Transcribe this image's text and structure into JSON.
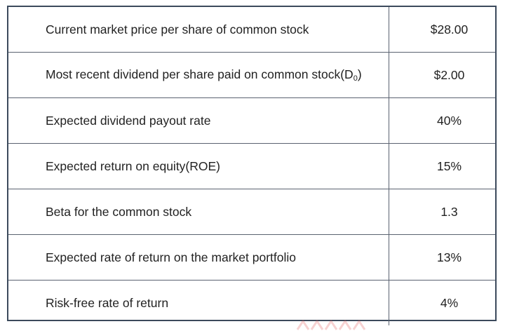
{
  "rows": [
    {
      "label": "Current market price per share of common stock",
      "value": "$28.00"
    },
    {
      "label": "Most recent dividend per share paid on common stock(D",
      "label_sub": "0",
      "label_tail": ")",
      "value": "$2.00"
    },
    {
      "label": "Expected dividend payout rate",
      "value": "40%"
    },
    {
      "label": "Expected return on equity(ROE)",
      "value": "15%"
    },
    {
      "label": "Beta for the common stock",
      "value": "1.3"
    },
    {
      "label": "Expected rate of return on the market portfolio",
      "value": "13%"
    },
    {
      "label": "Risk-free rate of return",
      "value": "4%"
    }
  ]
}
